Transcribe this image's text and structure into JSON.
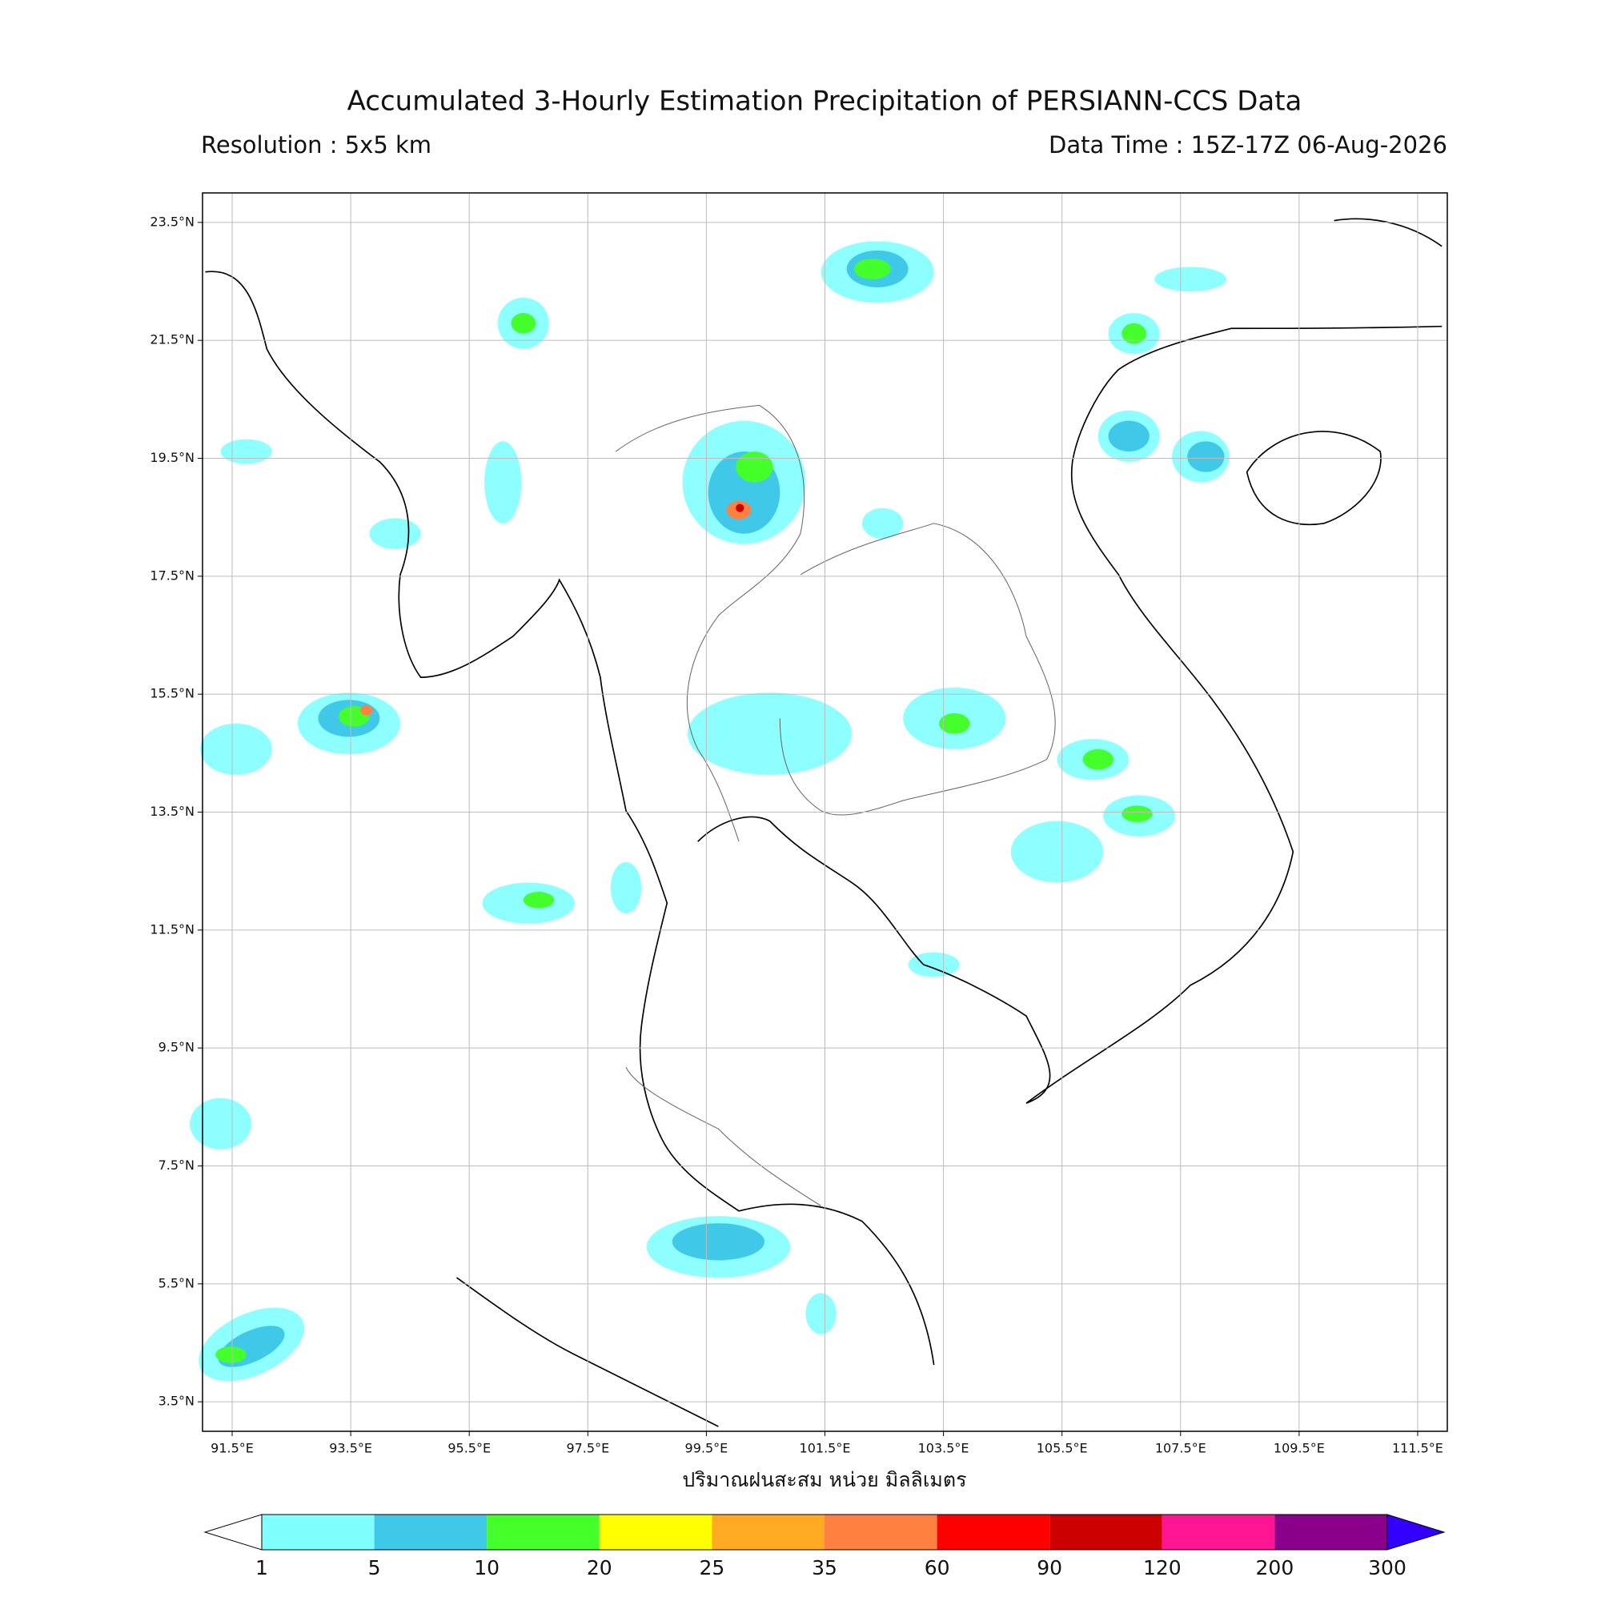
{
  "header": {
    "title": "Accumulated 3-Hourly Estimation Precipitation of PERSIANN-CCS Data",
    "resolution": "Resolution : 5x5 km",
    "data_time": "Data Time : 15Z-17Z 06-Aug-2026"
  },
  "map": {
    "xlim": [
      91,
      112
    ],
    "ylim": [
      3,
      24
    ],
    "yticks": [
      {
        "value": 23.5,
        "label": "23.5°N"
      },
      {
        "value": 21.5,
        "label": "21.5°N"
      },
      {
        "value": 19.5,
        "label": "19.5°N"
      },
      {
        "value": 17.5,
        "label": "17.5°N"
      },
      {
        "value": 15.5,
        "label": "15.5°N"
      },
      {
        "value": 13.5,
        "label": "13.5°N"
      },
      {
        "value": 11.5,
        "label": "11.5°N"
      },
      {
        "value": 9.5,
        "label": "9.5°N"
      },
      {
        "value": 7.5,
        "label": "7.5°N"
      },
      {
        "value": 5.5,
        "label": "5.5°N"
      },
      {
        "value": 3.5,
        "label": "3.5°N"
      }
    ],
    "xticks": [
      {
        "value": 91.5,
        "label": "91.5°E"
      },
      {
        "value": 93.5,
        "label": "93.5°E"
      },
      {
        "value": 95.5,
        "label": "95.5°E"
      },
      {
        "value": 97.5,
        "label": "97.5°E"
      },
      {
        "value": 99.5,
        "label": "99.5°E"
      },
      {
        "value": 101.5,
        "label": "101.5°E"
      },
      {
        "value": 103.5,
        "label": "103.5°E"
      },
      {
        "value": 105.5,
        "label": "105.5°E"
      },
      {
        "value": 107.5,
        "label": "107.5°E"
      },
      {
        "value": 109.5,
        "label": "109.5°E"
      },
      {
        "value": 111.5,
        "label": "111.5°E"
      }
    ],
    "grid": true,
    "xlabel": "ปริมาณฝนสะสม หน่วย มิลลิเมตร"
  },
  "colorbar": {
    "bounds": [
      1,
      5,
      10,
      20,
      25,
      35,
      60,
      90,
      120,
      200,
      300
    ],
    "colors": [
      "#80ffff",
      "#40c8e8",
      "#44ff2a",
      "#ffff00",
      "#ffaa22",
      "#ff8040",
      "#ff0000",
      "#cc0000",
      "#ff1493",
      "#8b008b"
    ],
    "under_color": "#ffffff",
    "over_color": "#3300ff"
  }
}
